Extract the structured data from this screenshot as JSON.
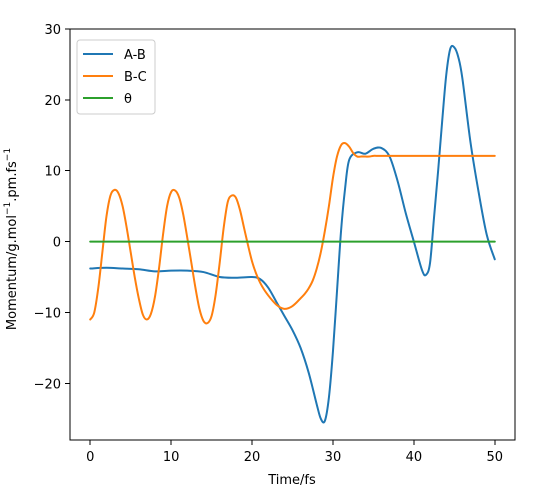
{
  "chart_data": {
    "type": "line",
    "title": "",
    "xlabel": "Time/fs",
    "ylabel": "Momentum/g.mol⁻¹.pm.fs⁻¹",
    "ylabel_parts": {
      "base": "Momentum/g.mol",
      "mid": ".pm.fs",
      "sup": "−1"
    },
    "xlim": [
      -2.5,
      52.5
    ],
    "ylim": [
      -28,
      30
    ],
    "xticks": [
      0,
      10,
      20,
      30,
      40,
      50
    ],
    "yticks": [
      -20,
      -10,
      0,
      10,
      20,
      30
    ],
    "xtick_labels": [
      "0",
      "10",
      "20",
      "30",
      "40",
      "50"
    ],
    "ytick_labels": [
      "−20",
      "−10",
      "0",
      "10",
      "20",
      "30"
    ],
    "grid": false,
    "legend_position": "top-left",
    "series": [
      {
        "name": "A-B",
        "color": "#1f77b4",
        "x": [
          0,
          2,
          4,
          6,
          8,
          10,
          12,
          14,
          16,
          18,
          20,
          21,
          22,
          23,
          24,
          25,
          26,
          27,
          28,
          28.5,
          29,
          29.5,
          30,
          30.5,
          31,
          31.5,
          32,
          33,
          34,
          35,
          36,
          37,
          38,
          39,
          40,
          41,
          41.5,
          42,
          42.5,
          43,
          43.5,
          44,
          44.5,
          45,
          45.5,
          46,
          47,
          48,
          49,
          50
        ],
        "y": [
          -3.8,
          -3.7,
          -3.8,
          -3.9,
          -4.2,
          -4.1,
          -4.1,
          -4.3,
          -5.0,
          -5.1,
          -5.0,
          -5.3,
          -6.5,
          -8.5,
          -10.5,
          -12.5,
          -15.0,
          -18.5,
          -23.0,
          -25.0,
          -25.3,
          -22.0,
          -15.5,
          -7.0,
          1.5,
          7.5,
          11.5,
          12.6,
          12.4,
          13.1,
          13.2,
          12.0,
          8.5,
          4.0,
          0.0,
          -4.0,
          -4.7,
          -3.0,
          3.5,
          10.0,
          17.0,
          23.5,
          27.2,
          27.4,
          26.0,
          23.0,
          14.0,
          7.0,
          1.0,
          -2.5
        ]
      },
      {
        "name": "B-C",
        "color": "#ff7f0e",
        "x": [
          0,
          0.5,
          1,
          1.5,
          2,
          2.5,
          3,
          3.5,
          4,
          4.5,
          5,
          5.5,
          6,
          6.5,
          7,
          7.5,
          8,
          8.5,
          9,
          9.5,
          10,
          10.5,
          11,
          11.5,
          12,
          12.5,
          13,
          13.5,
          14,
          14.5,
          15,
          15.5,
          16,
          16.5,
          17,
          17.5,
          18,
          18.5,
          19,
          19.5,
          20,
          20.5,
          21,
          21.5,
          22,
          22.5,
          23,
          23.5,
          24,
          24.5,
          25,
          25.5,
          26,
          26.5,
          27,
          27.5,
          28,
          28.5,
          29,
          29.5,
          30,
          30.5,
          31,
          31.5,
          32,
          32.5,
          33,
          33.5,
          34,
          34.5,
          35,
          35.5,
          36,
          36.5,
          37,
          37.5,
          38,
          39,
          40,
          42,
          44,
          46,
          48,
          50
        ],
        "y": [
          -11.0,
          -10.0,
          -6.5,
          -1.5,
          3.5,
          6.5,
          7.3,
          6.8,
          5.0,
          2.0,
          -1.5,
          -5.0,
          -8.0,
          -10.3,
          -11.0,
          -10.2,
          -7.8,
          -3.8,
          1.0,
          5.0,
          7.0,
          7.2,
          6.2,
          3.8,
          0.5,
          -3.0,
          -6.5,
          -9.5,
          -11.2,
          -11.5,
          -10.5,
          -7.5,
          -3.0,
          2.0,
          5.6,
          6.5,
          6.2,
          4.5,
          2.0,
          -0.5,
          -2.8,
          -4.5,
          -5.8,
          -6.8,
          -7.6,
          -8.3,
          -8.9,
          -9.3,
          -9.5,
          -9.4,
          -9.1,
          -8.6,
          -8.0,
          -7.4,
          -6.6,
          -5.5,
          -3.8,
          -1.5,
          1.5,
          5.0,
          9.0,
          12.0,
          13.6,
          13.9,
          13.4,
          12.5,
          12.0,
          12.0,
          12.0,
          12.0,
          12.1,
          12.1,
          12.1,
          12.1,
          12.1,
          12.1,
          12.1,
          12.1,
          12.1,
          12.1,
          12.1,
          12.1,
          12.1,
          12.1
        ]
      },
      {
        "name": "θ",
        "color": "#2ca02c",
        "x": [
          0,
          50
        ],
        "y": [
          0,
          0
        ]
      }
    ]
  }
}
